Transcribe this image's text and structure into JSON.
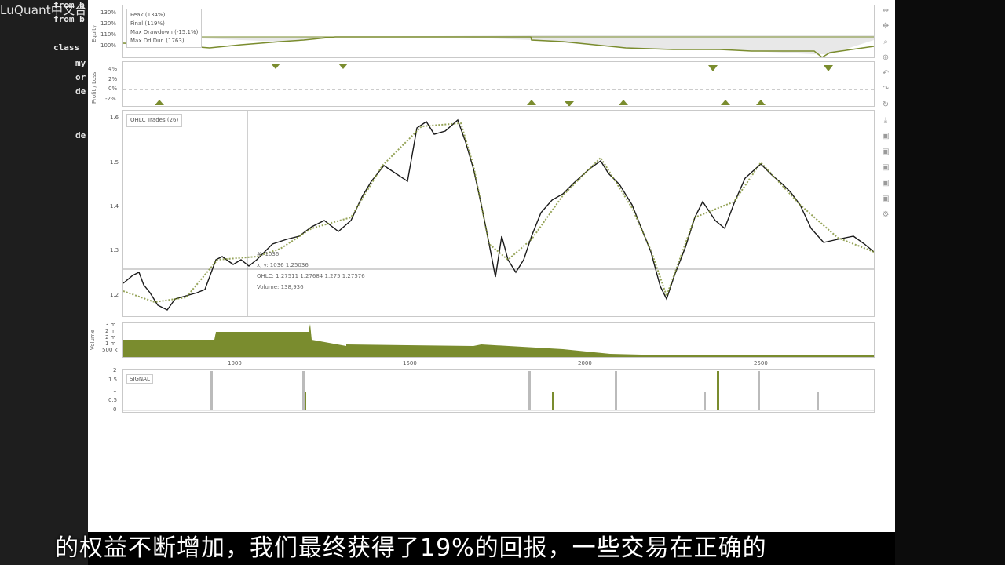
{
  "editor": {
    "lines": [
      "from b",
      "from b",
      "class",
      "my",
      "or",
      "de",
      "de"
    ],
    "watermark": "LuQuant中文台"
  },
  "equity": {
    "ylabel": "Equity",
    "ticks": [
      "130%",
      "120%",
      "110%",
      "100%"
    ],
    "legend": [
      "Peak (134%)",
      "Final (119%)",
      "Max Drawdown (-15.1%)",
      "Max Dd Dur. (1763)"
    ]
  },
  "pl": {
    "ylabel": "Profit / Loss",
    "ticks": [
      "4%",
      "2%",
      "0%",
      "-2%"
    ]
  },
  "ohlc": {
    "legend": "OHLC Trades (26)",
    "ticks": [
      "1.6",
      "1.5",
      "1.4",
      "1.3",
      "1.2"
    ],
    "tooltip": [
      "#: 1036",
      "x, y: 1036    1.25036",
      "OHLC: 1.27511    1.27684    1.275    1.27576",
      "Volume: 138,936"
    ]
  },
  "volume": {
    "ylabel": "Volume",
    "ticks": [
      "3 m",
      "2 m",
      "2 m",
      "1 m",
      "500 k"
    ]
  },
  "xaxis": {
    "ticks": [
      "1000",
      "1500",
      "2000",
      "2500"
    ]
  },
  "signal": {
    "label": "SIGNAL",
    "ticks": [
      "2",
      "1.5",
      "1",
      "0.5",
      "0"
    ]
  },
  "subtitle": "的权益不断增加，我们最终获得了19%的回报，一些交易在正确的",
  "colors": {
    "accent": "#7a8c2e",
    "price": "#1a1a1a"
  },
  "icons": [
    "arrows-icon",
    "pan-icon",
    "zoom-icon",
    "wheel-zoom-icon",
    "undo-icon",
    "redo-icon",
    "reset-icon",
    "save-icon",
    "hover-icon"
  ]
}
